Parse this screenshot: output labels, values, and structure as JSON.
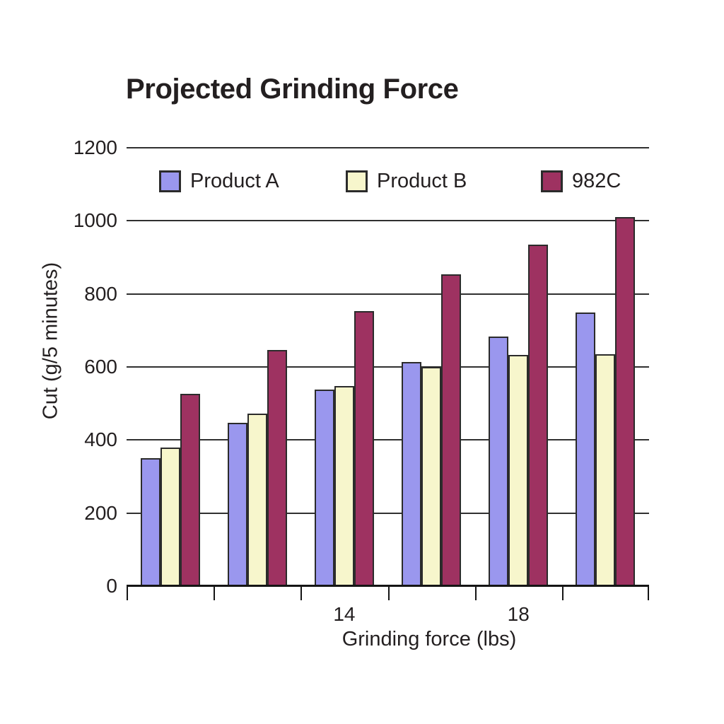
{
  "chart_data": {
    "type": "bar",
    "title": "Projected Grinding Force",
    "xlabel": "Grinding force (lbs)",
    "ylabel": "Cut (g/5 minutes)",
    "ylim": [
      0,
      1200
    ],
    "yticks": [
      0,
      200,
      400,
      600,
      800,
      1000,
      1200
    ],
    "ytick_labels": [
      "0",
      "200",
      "400",
      "600",
      "800",
      "1000",
      "1200"
    ],
    "grid": true,
    "legend_position": "top-inside",
    "categories": [
      "",
      "",
      "14",
      "",
      "18",
      ""
    ],
    "series": [
      {
        "name": "Product A",
        "color": "#9A97EE",
        "values": [
          350,
          448,
          538,
          614,
          684,
          750
        ]
      },
      {
        "name": "Product B",
        "color": "#F7F6CC",
        "values": [
          380,
          472,
          548,
          600,
          632,
          635
        ]
      },
      {
        "name": "982C",
        "color": "#9E3261",
        "values": [
          526,
          647,
          753,
          853,
          934,
          1010
        ]
      }
    ]
  },
  "colors": {
    "text": "#231F20",
    "gridline": "#303030",
    "bar_border": "#2B2B2B",
    "background": "#FFFFFF"
  }
}
